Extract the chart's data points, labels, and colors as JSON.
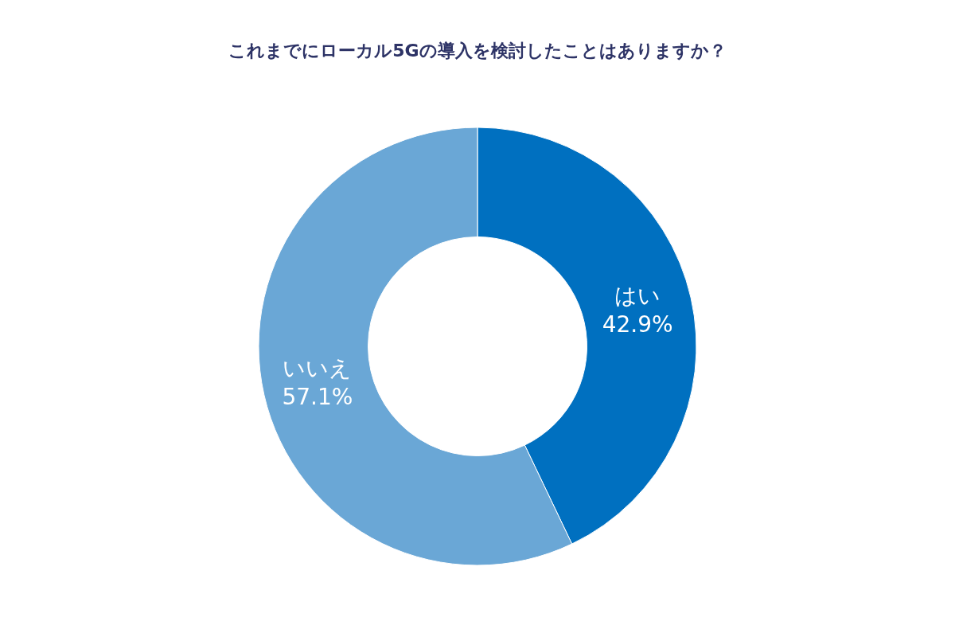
{
  "chart_data": {
    "type": "donut",
    "title": "これまでにローカル5Gの導入を検討したことはありますか？",
    "categories": [
      "はい",
      "いいえ"
    ],
    "values": [
      42.9,
      57.1
    ],
    "value_labels": [
      "42.9%",
      "57.1%"
    ],
    "colors": [
      "#0070c0",
      "#6aa7d6"
    ],
    "legend": false
  }
}
